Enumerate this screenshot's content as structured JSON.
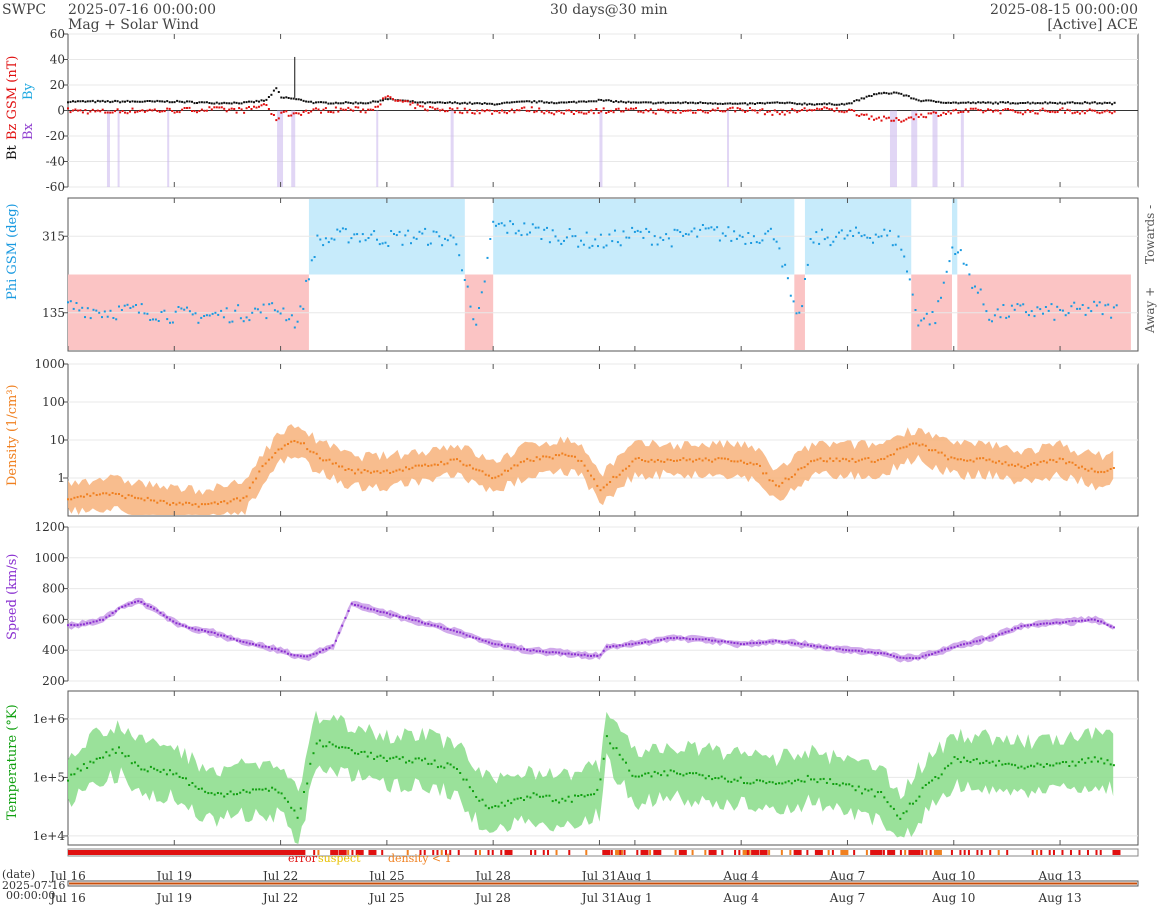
{
  "header": {
    "source": "SWPC",
    "start": "2025-07-16 00:00:00",
    "product": "Mag + Solar Wind",
    "span": "30 days@30 min",
    "end": "2025-08-15 00:00:00",
    "spacecraft": "[Active] ACE"
  },
  "colors": {
    "bt": "#111111",
    "bz": "#e01010",
    "bx": "#9040d0",
    "by": "#20a8e0",
    "phi": "#1a9ae0",
    "phi_toward_band": "#c7ebfb",
    "phi_away_band": "#fbc4c4",
    "density": "#f08020",
    "density_band": "#f7b27a",
    "speed": "#8a30d0",
    "speed_band": "#c89ae8",
    "temperature": "#10a010",
    "temperature_band": "#88dc88",
    "flag_error": "#e01010",
    "flag_suspect": "#e8c000",
    "flag_density": "#f08020"
  },
  "chart_data": [
    {
      "type": "line",
      "panel": "mag",
      "ylabel_parts": [
        "Bt",
        "Bz GSM (nT)",
        "Bx",
        "By"
      ],
      "ylim": [
        -60,
        60
      ],
      "yticks": [
        -60,
        -40,
        -20,
        0,
        20,
        40,
        60
      ],
      "series": [
        {
          "name": "Bt",
          "x": [
            0,
            1,
            2,
            3,
            4,
            5,
            5.6,
            5.9,
            6,
            6.2,
            7,
            8,
            8.5,
            9,
            10,
            11,
            12,
            13,
            14,
            15,
            16,
            17,
            18,
            19,
            20,
            21,
            22,
            22.8,
            23.4,
            24,
            25,
            26,
            27,
            28,
            29,
            30
          ],
          "values": [
            7,
            7,
            7,
            7,
            6,
            6,
            8,
            18,
            10,
            10,
            6,
            6,
            6,
            9,
            6,
            6,
            5,
            7,
            6,
            8,
            6,
            6,
            6,
            5,
            6,
            5,
            5,
            13,
            14,
            8,
            6,
            6,
            6,
            6,
            6,
            5
          ]
        },
        {
          "name": "Bz",
          "x": [
            0,
            1,
            2,
            3,
            4,
            5,
            5.6,
            5.9,
            6,
            6.2,
            7,
            8,
            8.5,
            9,
            10,
            11,
            12,
            13,
            14,
            15,
            16,
            17,
            18,
            19,
            20,
            21,
            22,
            22.8,
            23.4,
            24,
            25,
            26,
            27,
            28,
            29,
            30
          ],
          "values": [
            0,
            -1,
            0,
            0,
            1,
            0,
            5,
            -10,
            0,
            -3,
            0,
            1,
            0,
            10,
            2,
            0,
            -1,
            1,
            -2,
            0,
            0,
            -1,
            0,
            1,
            -2,
            1,
            0,
            -6,
            -8,
            -4,
            -1,
            0,
            -1,
            0,
            -1,
            -2
          ]
        }
      ]
    },
    {
      "type": "scatter",
      "panel": "phi",
      "ylabel": "Phi GSM (deg)",
      "ylim": [
        45,
        405
      ],
      "yticks": [
        135,
        315
      ],
      "right_labels": [
        "Towards -",
        "Away +"
      ],
      "sectors": [
        {
          "from": 0,
          "to": 6.8,
          "polarity": "away"
        },
        {
          "from": 6.8,
          "to": 11.2,
          "polarity": "toward"
        },
        {
          "from": 11.2,
          "to": 12.0,
          "polarity": "away"
        },
        {
          "from": 12.0,
          "to": 20.5,
          "polarity": "toward"
        },
        {
          "from": 20.5,
          "to": 20.8,
          "polarity": "away"
        },
        {
          "from": 20.8,
          "to": 23.8,
          "polarity": "toward"
        },
        {
          "from": 23.8,
          "to": 24.95,
          "polarity": "away"
        },
        {
          "from": 24.95,
          "to": 25.1,
          "polarity": "toward"
        },
        {
          "from": 25.1,
          "to": 30,
          "polarity": "away"
        }
      ],
      "series": [
        {
          "name": "Phi",
          "x": [
            0,
            1,
            2,
            3,
            4,
            5,
            6,
            6.5,
            7,
            8,
            9,
            10,
            11,
            11.5,
            12,
            13,
            14,
            15,
            16,
            17,
            18,
            19,
            20,
            20.6,
            21,
            22,
            23,
            23.5,
            24,
            24.5,
            25,
            26,
            27,
            28,
            29,
            30
          ],
          "values": [
            150,
            138,
            140,
            130,
            128,
            135,
            145,
            110,
            300,
            320,
            310,
            315,
            305,
            80,
            340,
            330,
            315,
            300,
            320,
            310,
            325,
            315,
            320,
            100,
            310,
            315,
            320,
            300,
            120,
            125,
            300,
            130,
            140,
            135,
            145,
            135
          ]
        }
      ]
    },
    {
      "type": "line",
      "panel": "density",
      "ylabel": "Density (1/cm³)",
      "yscale": "log",
      "ylim": [
        0.1,
        1000
      ],
      "yticks": [
        1,
        10,
        100,
        1000
      ],
      "series": [
        {
          "name": "Density",
          "x": [
            0,
            1,
            2,
            3,
            4,
            5,
            5.5,
            6,
            6.5,
            7,
            8,
            9,
            10,
            11,
            12,
            13,
            14,
            14.5,
            15,
            16,
            17,
            18,
            19,
            19.5,
            20,
            21,
            22,
            23,
            23.5,
            24,
            25,
            26,
            27,
            28,
            29,
            30
          ],
          "values": [
            0.3,
            0.4,
            0.3,
            0.2,
            0.2,
            0.3,
            2,
            6,
            10,
            4,
            1.5,
            1.5,
            2,
            3,
            1,
            3,
            4,
            3,
            0.5,
            3,
            3,
            3,
            3,
            2,
            0.6,
            3,
            3,
            3,
            6,
            8,
            3,
            3,
            2,
            3,
            1.5,
            2
          ]
        }
      ]
    },
    {
      "type": "line",
      "panel": "speed",
      "ylabel": "Speed (km/s)",
      "ylim": [
        200,
        1200
      ],
      "yticks": [
        200,
        400,
        600,
        800,
        1000,
        1200
      ],
      "series": [
        {
          "name": "Speed",
          "x": [
            0,
            0.5,
            1,
            1.5,
            2,
            2.5,
            3,
            3.5,
            4,
            5,
            6,
            6.3,
            6.8,
            7.5,
            8,
            9,
            10,
            11,
            12,
            13,
            14,
            15,
            15.2,
            16,
            17,
            18,
            19,
            20,
            21,
            22,
            23,
            23.5,
            24,
            25,
            26,
            27,
            28,
            29,
            30
          ],
          "values": [
            560,
            570,
            600,
            680,
            720,
            660,
            580,
            540,
            520,
            450,
            400,
            370,
            360,
            430,
            700,
            640,
            580,
            520,
            440,
            400,
            380,
            360,
            420,
            440,
            480,
            470,
            440,
            460,
            430,
            400,
            380,
            350,
            350,
            420,
            480,
            560,
            580,
            600,
            500
          ]
        }
      ]
    },
    {
      "type": "line",
      "panel": "temperature",
      "ylabel": "Temperature (°K)",
      "yscale": "log",
      "ylim": [
        7000,
        3000000
      ],
      "ytick_labels": [
        "1e+4",
        "1e+5",
        "1e+6"
      ],
      "series": [
        {
          "name": "Temperature",
          "x": [
            0,
            1,
            1.5,
            2,
            3,
            4,
            5,
            6,
            6.5,
            7,
            8,
            9,
            10,
            11,
            11.5,
            12,
            13,
            14,
            15,
            15.2,
            16,
            17,
            18,
            19,
            20,
            21,
            22,
            23,
            23.5,
            24,
            25,
            26,
            27,
            28,
            29,
            30
          ],
          "values": [
            100000,
            250000,
            300000,
            150000,
            120000,
            50000,
            60000,
            60000,
            20000,
            400000,
            300000,
            200000,
            200000,
            140000,
            50000,
            30000,
            50000,
            40000,
            60000,
            500000,
            100000,
            120000,
            110000,
            90000,
            80000,
            100000,
            70000,
            50000,
            20000,
            50000,
            200000,
            180000,
            150000,
            160000,
            200000,
            150000
          ]
        }
      ]
    }
  ],
  "flags": {
    "labels": [
      "error",
      "suspect",
      "density < 1"
    ]
  },
  "x_axis": {
    "tick_labels": [
      "Jul 16",
      "Jul 19",
      "Jul 22",
      "Jul 25",
      "Jul 28",
      "Jul 31",
      "Aug 1",
      "Aug 4",
      "Aug 7",
      "Aug 10",
      "Aug 13"
    ],
    "tick_days": [
      0,
      3,
      6,
      9,
      12,
      15,
      16,
      19,
      22,
      25,
      28
    ]
  },
  "overview": {
    "date_label": "(date)",
    "start_date": "2025-07-16",
    "start_time": "00:00:00"
  }
}
